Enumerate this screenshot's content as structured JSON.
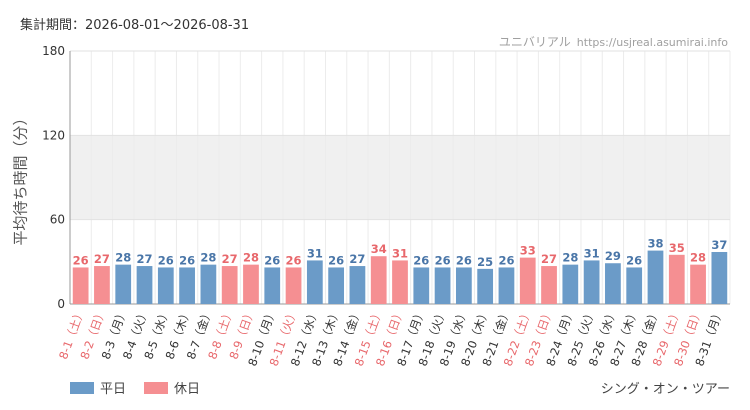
{
  "header": {
    "period_label": "集計期間：2026-08-01～2026-08-31",
    "source_name": "ユニバリアル",
    "source_url": "https://usjreal.asumirai.info"
  },
  "footer": {
    "attraction_name": "シング・オン・ツアー"
  },
  "colors": {
    "weekday": "#6b9bc8",
    "holiday": "#f58f92",
    "weekday_text": "#4a76a8",
    "holiday_text": "#e8686c",
    "band": "#f0f0f0",
    "grid": "#e2e2e2"
  },
  "chart_data": {
    "type": "bar",
    "title": "",
    "xlabel": "",
    "ylabel": "平均待ち時間（分）",
    "ylim": [
      0,
      180
    ],
    "yticks": [
      0,
      60,
      120,
      180
    ],
    "highlight_band": [
      60,
      120
    ],
    "legend": [
      {
        "name": "平日",
        "kind": "weekday"
      },
      {
        "name": "休日",
        "kind": "holiday"
      }
    ],
    "categories": [
      "8-1（土）",
      "8-2（日）",
      "8-3（月）",
      "8-4（火）",
      "8-5（水）",
      "8-6（木）",
      "8-7（金）",
      "8-8（土）",
      "8-9（日）",
      "8-10（月）",
      "8-11（火）",
      "8-12（水）",
      "8-13（木）",
      "8-14（金）",
      "8-15（土）",
      "8-16（日）",
      "8-17（月）",
      "8-18（火）",
      "8-19（水）",
      "8-20（木）",
      "8-21（金）",
      "8-22（土）",
      "8-23（日）",
      "8-24（月）",
      "8-25（火）",
      "8-26（水）",
      "8-27（木）",
      "8-28（金）",
      "8-29（土）",
      "8-30（日）",
      "8-31（月）"
    ],
    "values": [
      26,
      27,
      28,
      27,
      26,
      26,
      28,
      27,
      28,
      26,
      26,
      31,
      26,
      27,
      34,
      31,
      26,
      26,
      26,
      25,
      26,
      33,
      27,
      28,
      31,
      29,
      26,
      38,
      35,
      28,
      37
    ],
    "holiday": [
      true,
      true,
      false,
      false,
      false,
      false,
      false,
      true,
      true,
      false,
      true,
      false,
      false,
      false,
      true,
      true,
      false,
      false,
      false,
      false,
      false,
      true,
      true,
      false,
      false,
      false,
      false,
      false,
      true,
      true,
      false
    ]
  }
}
